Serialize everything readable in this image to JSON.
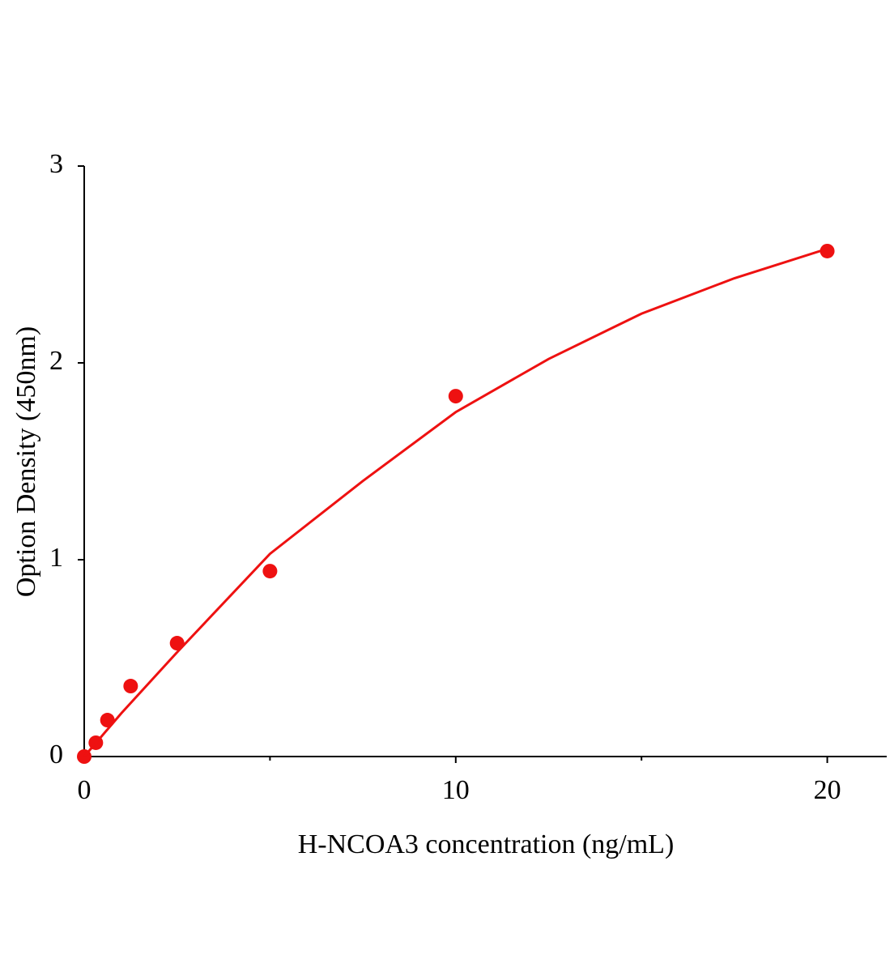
{
  "chart_data": {
    "type": "scatter",
    "xlabel": "H-NCOA3  concentration (ng/mL)",
    "ylabel": "Option Density (450nm)",
    "xlim": [
      0,
      21.6
    ],
    "ylim": [
      0,
      3
    ],
    "xticks": [
      0,
      10,
      20
    ],
    "xminor": [
      5,
      15
    ],
    "yticks": [
      0,
      1,
      2,
      3
    ],
    "series": [
      {
        "type": "scatter",
        "color": "#ee1111",
        "x": [
          0,
          0.3125,
          0.625,
          1.25,
          2.5,
          5,
          10,
          20
        ],
        "values": [
          0,
          0.07,
          0.185,
          0.358,
          0.576,
          0.942,
          1.831,
          2.568
        ]
      },
      {
        "type": "line",
        "color": "#ee1111",
        "x": [
          0,
          1,
          2.5,
          5,
          7.5,
          10,
          12.5,
          15,
          17.5,
          20
        ],
        "values": [
          0,
          0.22,
          0.53,
          1.03,
          1.4,
          1.75,
          2.02,
          2.25,
          2.43,
          2.58
        ]
      }
    ]
  }
}
